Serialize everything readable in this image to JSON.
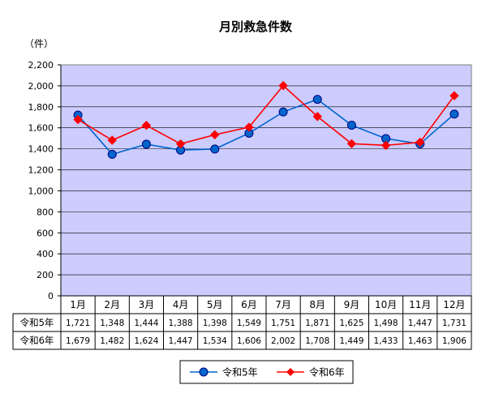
{
  "chart_data": {
    "type": "line",
    "title": "月別救急件数",
    "unit_label": "（件）",
    "categories": [
      "1月",
      "2月",
      "3月",
      "4月",
      "5月",
      "6月",
      "7月",
      "8月",
      "9月",
      "10月",
      "11月",
      "12月"
    ],
    "ylim": [
      0,
      2200
    ],
    "y_ticks": [
      "0",
      "200",
      "400",
      "600",
      "800",
      "1,000",
      "1,200",
      "1,400",
      "1,600",
      "1,800",
      "2,000",
      "2,200"
    ],
    "grid": true,
    "legend_position": "bottom",
    "plot_background": "#ccccff",
    "series": [
      {
        "name": "令和5年",
        "color": "#0066cc",
        "marker": "circle",
        "values": [
          1721,
          1348,
          1444,
          1388,
          1398,
          1549,
          1751,
          1871,
          1625,
          1498,
          1447,
          1731
        ],
        "labels": [
          "1,721",
          "1,348",
          "1,444",
          "1,388",
          "1,398",
          "1,549",
          "1,751",
          "1,871",
          "1,625",
          "1,498",
          "1,447",
          "1,731"
        ]
      },
      {
        "name": "令和6年",
        "color": "#ff0000",
        "marker": "diamond",
        "values": [
          1679,
          1482,
          1624,
          1447,
          1534,
          1606,
          2002,
          1708,
          1449,
          1433,
          1463,
          1906
        ],
        "labels": [
          "1,679",
          "1,482",
          "1,624",
          "1,447",
          "1,534",
          "1,606",
          "2,002",
          "1,708",
          "1,449",
          "1,433",
          "1,463",
          "1,906"
        ]
      }
    ]
  }
}
